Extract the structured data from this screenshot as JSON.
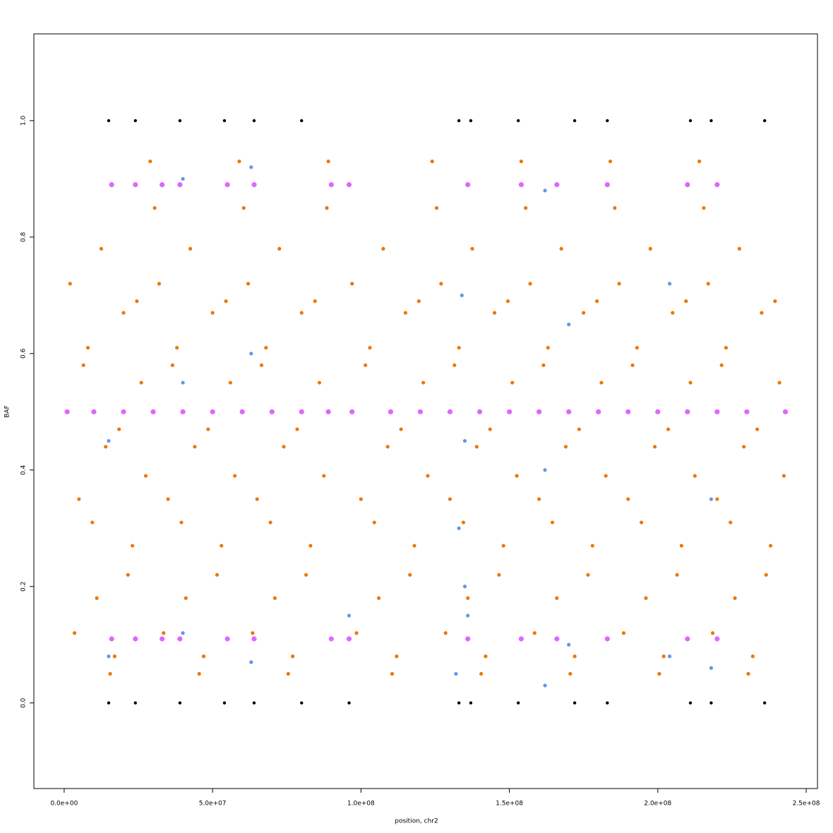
{
  "chart_data": {
    "type": "scatter",
    "x_label": "position, chr2",
    "y_label": "BAF",
    "xlim": [
      -10200000,
      253800000
    ],
    "ylim": [
      -0.147,
      1.149
    ],
    "xticks": [
      {
        "value": 0,
        "label": "0.0e+00"
      },
      {
        "value": 50000000,
        "label": "5.0e+07"
      },
      {
        "value": 100000000,
        "label": "1.0e+08"
      },
      {
        "value": 150000000,
        "label": "1.5e+08"
      },
      {
        "value": 200000000,
        "label": "2.0e+08"
      },
      {
        "value": 250000000,
        "label": "2.5e+08"
      }
    ],
    "yticks": [
      {
        "value": 0,
        "label": "0.0"
      },
      0.2,
      0.4,
      0.6,
      0.8,
      {
        "value": 1,
        "label": "1.0"
      }
    ],
    "grid": false,
    "series": [
      {
        "color": "#ee7600",
        "size": 2.6,
        "x": [
          2000000.0,
          5000000.0,
          8000000.0,
          11000000.0,
          14000000.0,
          17000000.0,
          20000000.0,
          23000000.0,
          26000000.0,
          29000000.0,
          32000000.0,
          35000000.0,
          38000000.0,
          41000000.0,
          44000000.0,
          47000000.0,
          50000000.0,
          53000000.0,
          56000000.0,
          59000000.0,
          62000000.0,
          65000000.0,
          68000000.0,
          71000000.0,
          74000000.0,
          77000000.0,
          80000000.0,
          83000000.0,
          86000000.0,
          89000000.0,
          97000000.0,
          100000000.0,
          103000000.0,
          106000000.0,
          109000000.0,
          112000000.0,
          115000000.0,
          118000000.0,
          121000000.0,
          124000000.0,
          127000000.0,
          130000000.0,
          133000000.0,
          136000000.0,
          139000000.0,
          142000000.0,
          145000000.0,
          148000000.0,
          151000000.0,
          154000000.0,
          157000000.0,
          160000000.0,
          163000000.0,
          166000000.0,
          169000000.0,
          172000000.0,
          175000000.0,
          178000000.0,
          181000000.0,
          184000000.0,
          187000000.0,
          190000000.0,
          193000000.0,
          196000000.0,
          199000000.0,
          202000000.0,
          205000000.0,
          208000000.0,
          211000000.0,
          214000000.0,
          217000000.0,
          220000000.0,
          223000000.0,
          226000000.0,
          229000000.0,
          232000000.0,
          235000000.0,
          238000000.0,
          241000000.0
        ],
        "values": [
          0.72,
          0.35,
          0.61,
          0.18,
          0.44,
          0.08,
          0.67,
          0.27,
          0.55,
          0.93,
          0.72,
          0.35,
          0.61,
          0.18,
          0.44,
          0.08,
          0.67,
          0.27,
          0.55,
          0.93,
          0.72,
          0.35,
          0.61,
          0.18,
          0.44,
          0.08,
          0.67,
          0.27,
          0.55,
          0.93,
          0.72,
          0.35,
          0.61,
          0.18,
          0.44,
          0.08,
          0.67,
          0.27,
          0.55,
          0.93,
          0.72,
          0.35,
          0.61,
          0.18,
          0.44,
          0.08,
          0.67,
          0.27,
          0.55,
          0.93,
          0.72,
          0.35,
          0.61,
          0.18,
          0.44,
          0.08,
          0.67,
          0.27,
          0.55,
          0.93,
          0.72,
          0.35,
          0.61,
          0.18,
          0.44,
          0.08,
          0.67,
          0.27,
          0.55,
          0.93,
          0.72,
          0.35,
          0.61,
          0.18,
          0.44,
          0.08,
          0.67,
          0.27,
          0.55
        ]
      },
      {
        "color": "#ee7600",
        "size": 2.6,
        "x": [
          3500000.0,
          6500000.0,
          9500000.0,
          12500000.0,
          15500000.0,
          18500000.0,
          21500000.0,
          24500000.0,
          27500000.0,
          30500000.0,
          33500000.0,
          36500000.0,
          39500000.0,
          42500000.0,
          45500000.0,
          48500000.0,
          51500000.0,
          54500000.0,
          57500000.0,
          60500000.0,
          63500000.0,
          66500000.0,
          69500000.0,
          72500000.0,
          75500000.0,
          78500000.0,
          81500000.0,
          84500000.0,
          87500000.0,
          88500000.0,
          98500000.0,
          101500000.0,
          104500000.0,
          107500000.0,
          110500000.0,
          113500000.0,
          116500000.0,
          119500000.0,
          122500000.0,
          125500000.0,
          128500000.0,
          131500000.0,
          134500000.0,
          137500000.0,
          140500000.0,
          143500000.0,
          146500000.0,
          149500000.0,
          152500000.0,
          155500000.0,
          158500000.0,
          161500000.0,
          164500000.0,
          167500000.0,
          170500000.0,
          173500000.0,
          176500000.0,
          179500000.0,
          182500000.0,
          185500000.0,
          188500000.0,
          191500000.0,
          194500000.0,
          197500000.0,
          200500000.0,
          203500000.0,
          206500000.0,
          209500000.0,
          212500000.0,
          215500000.0,
          218500000.0,
          221500000.0,
          224500000.0,
          227500000.0,
          230500000.0,
          233500000.0,
          236500000.0,
          239500000.0,
          242500000.0
        ],
        "values": [
          0.12,
          0.58,
          0.31,
          0.78,
          0.05,
          0.47,
          0.22,
          0.69,
          0.39,
          0.85,
          0.12,
          0.58,
          0.31,
          0.78,
          0.05,
          0.47,
          0.22,
          0.69,
          0.39,
          0.85,
          0.12,
          0.58,
          0.31,
          0.78,
          0.05,
          0.47,
          0.22,
          0.69,
          0.39,
          0.85,
          0.12,
          0.58,
          0.31,
          0.78,
          0.05,
          0.47,
          0.22,
          0.69,
          0.39,
          0.85,
          0.12,
          0.58,
          0.31,
          0.78,
          0.05,
          0.47,
          0.22,
          0.69,
          0.39,
          0.85,
          0.12,
          0.58,
          0.31,
          0.78,
          0.05,
          0.47,
          0.22,
          0.69,
          0.39,
          0.85,
          0.12,
          0.58,
          0.31,
          0.78,
          0.05,
          0.47,
          0.22,
          0.69,
          0.39,
          0.85,
          0.12,
          0.58,
          0.31,
          0.78,
          0.05,
          0.47,
          0.22,
          0.69,
          0.39
        ]
      },
      {
        "color": "#6495ed",
        "size": 2.6,
        "x": [
          15000000.0,
          15000000.0,
          40000000.0,
          40000000.0,
          40000000.0,
          63000000.0,
          63000000.0,
          63000000.0,
          132000000.0,
          133000000.0,
          134000000.0,
          135000000.0,
          135000000.0,
          136000000.0,
          162000000.0,
          162000000.0,
          162000000.0,
          170000000.0,
          170000000.0,
          204000000.0,
          204000000.0,
          218000000.0,
          218000000.0,
          96000000.0
        ],
        "values": [
          0.08,
          0.45,
          0.12,
          0.55,
          0.9,
          0.07,
          0.6,
          0.92,
          0.05,
          0.3,
          0.7,
          0.2,
          0.45,
          0.15,
          0.03,
          0.4,
          0.88,
          0.1,
          0.65,
          0.08,
          0.72,
          0.06,
          0.35,
          0.15
        ]
      },
      {
        "color": "#e066ff",
        "size": 3.6,
        "x": [
          1000000.0,
          10000000.0,
          20000000.0,
          30000000.0,
          40000000.0,
          50000000.0,
          60000000.0,
          70000000.0,
          80000000.0,
          89000000.0,
          97000000.0,
          110000000.0,
          120000000.0,
          130000000.0,
          140000000.0,
          150000000.0,
          160000000.0,
          170000000.0,
          180000000.0,
          190000000.0,
          200000000.0,
          210000000.0,
          220000000.0,
          230000000.0,
          243000000.0
        ],
        "values": [
          0.5,
          0.5,
          0.5,
          0.5,
          0.5,
          0.5,
          0.5,
          0.5,
          0.5,
          0.5,
          0.5,
          0.5,
          0.5,
          0.5,
          0.5,
          0.5,
          0.5,
          0.5,
          0.5,
          0.5,
          0.5,
          0.5,
          0.5,
          0.5,
          0.5
        ]
      },
      {
        "color": "#e066ff",
        "size": 3.6,
        "x": [
          16000000.0,
          24000000.0,
          33000000.0,
          39000000.0,
          55000000.0,
          64000000.0,
          90000000.0,
          96000000.0,
          136000000.0,
          154000000.0,
          166000000.0,
          183000000.0,
          210000000.0,
          220000000.0
        ],
        "values": [
          0.89,
          0.89,
          0.89,
          0.89,
          0.89,
          0.89,
          0.89,
          0.89,
          0.89,
          0.89,
          0.89,
          0.89,
          0.89,
          0.89
        ]
      },
      {
        "color": "#e066ff",
        "size": 3.6,
        "x": [
          16000000.0,
          24000000.0,
          33000000.0,
          39000000.0,
          55000000.0,
          64000000.0,
          90000000.0,
          96000000.0,
          136000000.0,
          154000000.0,
          166000000.0,
          183000000.0,
          210000000.0,
          220000000.0
        ],
        "values": [
          0.11,
          0.11,
          0.11,
          0.11,
          0.11,
          0.11,
          0.11,
          0.11,
          0.11,
          0.11,
          0.11,
          0.11,
          0.11,
          0.11
        ]
      },
      {
        "color": "#000000",
        "size": 2.2,
        "x": [
          15000000.0,
          24000000.0,
          39000000.0,
          54000000.0,
          64000000.0,
          80000000.0,
          96000000.0,
          133000000.0,
          137000000.0,
          153000000.0,
          172000000.0,
          183000000.0,
          211000000.0,
          218000000.0,
          236000000.0
        ],
        "values": [
          0,
          0,
          0,
          0,
          0,
          0,
          0,
          0,
          0,
          0,
          0,
          0,
          0,
          0,
          0
        ]
      },
      {
        "color": "#000000",
        "size": 2.2,
        "x": [
          15000000.0,
          24000000.0,
          39000000.0,
          54000000.0,
          64000000.0,
          80000000.0,
          133000000.0,
          137000000.0,
          153000000.0,
          172000000.0,
          183000000.0,
          211000000.0,
          218000000.0,
          236000000.0
        ],
        "values": [
          1,
          1,
          1,
          1,
          1,
          1,
          1,
          1,
          1,
          1,
          1,
          1,
          1,
          1
        ]
      }
    ]
  }
}
